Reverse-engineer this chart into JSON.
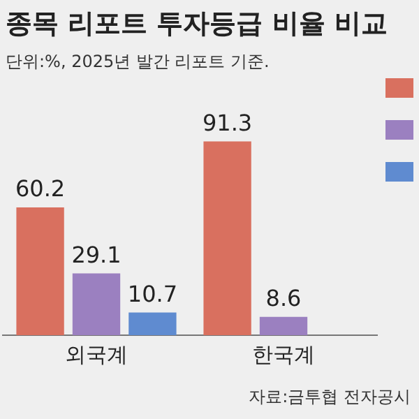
{
  "chart_data": {
    "type": "bar",
    "title": "종목 리포트 투자등급 비율 비교",
    "subtitle": "단위:%, 2025년 발간 리포트 기준.",
    "categories": [
      "외국계",
      "한국계"
    ],
    "series": [
      {
        "color": "#d9705f",
        "values": [
          60.2,
          91.3
        ]
      },
      {
        "color": "#9b80c0",
        "values": [
          29.1,
          8.6
        ]
      },
      {
        "color": "#5f8bd0",
        "values": [
          10.7,
          null
        ]
      }
    ],
    "data_labels": true,
    "grid": false,
    "legend": false,
    "annotations": [
      "자료:금투협 전자공시"
    ]
  }
}
